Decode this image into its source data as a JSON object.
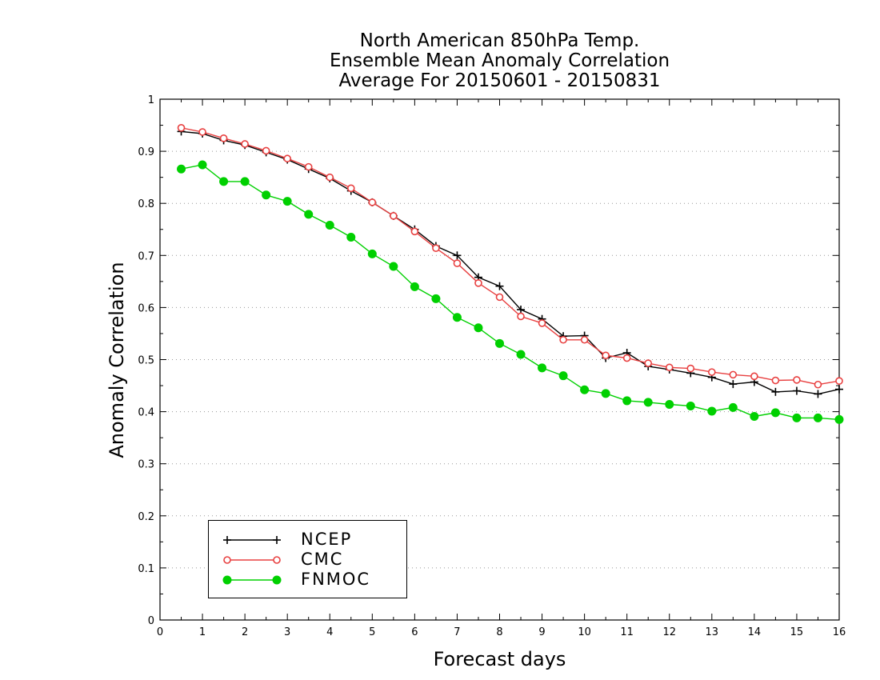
{
  "chart_data": {
    "type": "line",
    "title_lines": [
      "North American 850hPa Temp.",
      "Ensemble Mean Anomaly Correlation",
      "Average For 20150601 - 20150831"
    ],
    "xlabel": "Forecast days",
    "ylabel": "Anomaly Correlation",
    "xlim": [
      0,
      16
    ],
    "ylim": [
      0,
      1
    ],
    "x_ticks": [
      "0",
      "1",
      "2",
      "3",
      "4",
      "5",
      "6",
      "7",
      "8",
      "9",
      "10",
      "11",
      "12",
      "13",
      "14",
      "15",
      "16"
    ],
    "y_ticks": [
      "0",
      "0.1",
      "0.2",
      "0.3",
      "0.4",
      "0.5",
      "0.6",
      "0.7",
      "0.8",
      "0.9",
      "1"
    ],
    "grid": "dotted horizontal",
    "legend_position": "bottom-left",
    "x": [
      0.5,
      1,
      1.5,
      2,
      2.5,
      3,
      3.5,
      4,
      4.5,
      5,
      5.5,
      6,
      6.5,
      7,
      7.5,
      8,
      8.5,
      9,
      9.5,
      10,
      10.5,
      11,
      11.5,
      12,
      12.5,
      13,
      13.5,
      14,
      14.5,
      15,
      15.5,
      16
    ],
    "series": [
      {
        "name": "NCEP",
        "color": "#000000",
        "marker": "plus",
        "values": [
          0.938,
          0.934,
          0.921,
          0.912,
          0.898,
          0.884,
          0.866,
          0.848,
          0.824,
          0.802,
          0.776,
          0.75,
          0.718,
          0.7,
          0.658,
          0.641,
          0.596,
          0.578,
          0.545,
          0.546,
          0.503,
          0.513,
          0.487,
          0.481,
          0.474,
          0.466,
          0.453,
          0.457,
          0.438,
          0.44,
          0.434,
          0.443
        ]
      },
      {
        "name": "CMC",
        "color": "#e84040",
        "marker": "open-circle",
        "values": [
          0.945,
          0.937,
          0.925,
          0.914,
          0.901,
          0.886,
          0.87,
          0.85,
          0.829,
          0.802,
          0.776,
          0.746,
          0.714,
          0.685,
          0.647,
          0.62,
          0.583,
          0.57,
          0.538,
          0.538,
          0.508,
          0.503,
          0.493,
          0.485,
          0.483,
          0.476,
          0.471,
          0.468,
          0.46,
          0.461,
          0.452,
          0.459
        ]
      },
      {
        "name": "FNMOC",
        "color": "#00d000",
        "marker": "filled-circle",
        "values": [
          0.866,
          0.874,
          0.842,
          0.842,
          0.816,
          0.804,
          0.779,
          0.758,
          0.735,
          0.703,
          0.679,
          0.64,
          0.617,
          0.581,
          0.561,
          0.531,
          0.51,
          0.484,
          0.469,
          0.442,
          0.435,
          0.421,
          0.418,
          0.414,
          0.411,
          0.401,
          0.408,
          0.391,
          0.398,
          0.388,
          0.388,
          0.385
        ]
      }
    ]
  }
}
